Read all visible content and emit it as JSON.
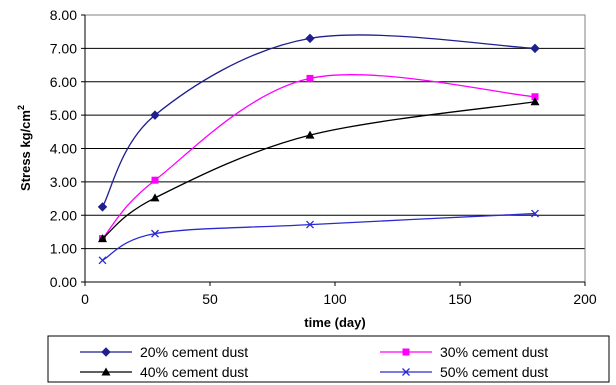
{
  "chart_data": {
    "type": "line",
    "xlabel": "time (day)",
    "ylabel": "Stress kg/cm",
    "ylabel_sup": "2",
    "xlim": [
      0,
      200
    ],
    "ylim": [
      0,
      8
    ],
    "x_ticks": [
      "0",
      "50",
      "100",
      "150",
      "200"
    ],
    "y_ticks": [
      "0.00",
      "1.00",
      "2.00",
      "3.00",
      "4.00",
      "5.00",
      "6.00",
      "7.00",
      "8.00"
    ],
    "x": [
      7,
      28,
      90,
      180
    ],
    "grid": "horizontal",
    "legend_position": "bottom",
    "series": [
      {
        "name": "20% cement dust",
        "values": [
          2.25,
          5.0,
          7.3,
          7.0
        ],
        "color": "#1f1f8f",
        "marker": "diamond"
      },
      {
        "name": "30% cement dust",
        "values": [
          1.3,
          3.05,
          6.1,
          5.55
        ],
        "color": "#ff00ff",
        "marker": "square"
      },
      {
        "name": "40% cement dust",
        "values": [
          1.3,
          2.52,
          4.4,
          5.4
        ],
        "color": "#000000",
        "marker": "triangle"
      },
      {
        "name": "50% cement dust",
        "values": [
          0.65,
          1.45,
          1.72,
          2.05
        ],
        "color": "#2a2ad0",
        "marker": "x"
      }
    ]
  }
}
